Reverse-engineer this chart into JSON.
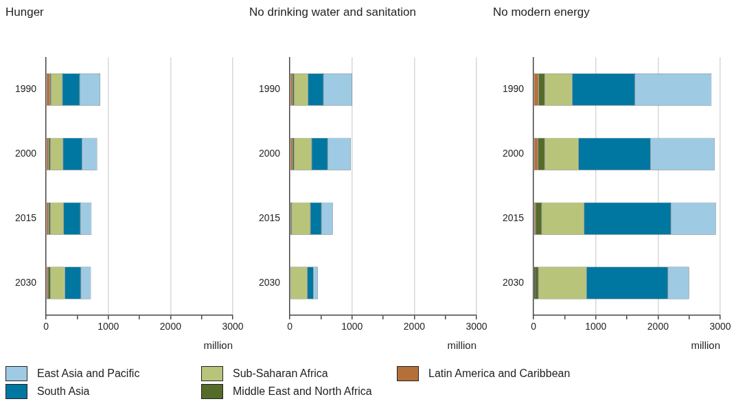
{
  "chart_data": [
    {
      "type": "bar",
      "title": "Hunger",
      "orientation": "horizontal",
      "stacked": true,
      "xlabel": "million",
      "categories": [
        "1990",
        "2000",
        "2015",
        "2030"
      ],
      "xlim": [
        0,
        3000
      ],
      "xticks": [
        0,
        {
          "value": 500,
          "label": null
        },
        1000,
        {
          "value": 1500,
          "label": null
        },
        2000,
        {
          "value": 2500,
          "label": null
        },
        3000
      ],
      "grid": "x",
      "legend": "bottom",
      "series": [
        {
          "name": "Latin America and Caribbean",
          "color": "#b5703a",
          "values": [
            60,
            40,
            40,
            30
          ]
        },
        {
          "name": "Middle East and North Africa",
          "color": "#556b2a",
          "values": [
            20,
            30,
            30,
            40
          ]
        },
        {
          "name": "Sub-Saharan Africa",
          "color": "#b8c47a",
          "values": [
            180,
            200,
            210,
            230
          ]
        },
        {
          "name": "South Asia",
          "color": "#0077a0",
          "values": [
            280,
            310,
            270,
            260
          ]
        },
        {
          "name": "East Asia and Pacific",
          "color": "#9ecae4",
          "values": [
            330,
            240,
            180,
            160
          ]
        }
      ]
    },
    {
      "type": "bar",
      "title": "No drinking water and sanitation",
      "orientation": "horizontal",
      "stacked": true,
      "xlabel": "million",
      "categories": [
        "1990",
        "2000",
        "2015",
        "2030"
      ],
      "xlim": [
        0,
        3000
      ],
      "xticks": [
        0,
        {
          "value": 500,
          "label": null
        },
        1000,
        {
          "value": 1500,
          "label": null
        },
        2000,
        {
          "value": 2500,
          "label": null
        },
        3000
      ],
      "grid": "x",
      "series": [
        {
          "color": "#b5703a",
          "values": [
            40,
            40,
            10,
            0
          ]
        },
        {
          "color": "#556b2a",
          "values": [
            30,
            30,
            20,
            10
          ]
        },
        {
          "color": "#b8c47a",
          "values": [
            220,
            280,
            300,
            270
          ]
        },
        {
          "color": "#0077a0",
          "values": [
            250,
            260,
            180,
            100
          ]
        },
        {
          "color": "#9ecae4",
          "values": [
            460,
            370,
            180,
            70
          ]
        }
      ]
    },
    {
      "type": "bar",
      "title": "No modern energy",
      "orientation": "horizontal",
      "stacked": true,
      "xlabel": "million",
      "categories": [
        "1990",
        "2000",
        "2015",
        "2030"
      ],
      "xlim": [
        0,
        3000
      ],
      "xticks": [
        0,
        {
          "value": 500,
          "label": null
        },
        1000,
        {
          "value": 1500,
          "label": null
        },
        2000,
        {
          "value": 2500,
          "label": null
        },
        3000
      ],
      "grid": "x",
      "series": [
        {
          "color": "#b5703a",
          "values": [
            80,
            70,
            30,
            20
          ]
        },
        {
          "color": "#556b2a",
          "values": [
            100,
            110,
            100,
            60
          ]
        },
        {
          "color": "#b8c47a",
          "values": [
            440,
            540,
            680,
            770
          ]
        },
        {
          "color": "#0077a0",
          "values": [
            1010,
            1160,
            1400,
            1310
          ]
        },
        {
          "color": "#9ecae4",
          "values": [
            1230,
            1030,
            720,
            340
          ]
        }
      ]
    }
  ]
}
